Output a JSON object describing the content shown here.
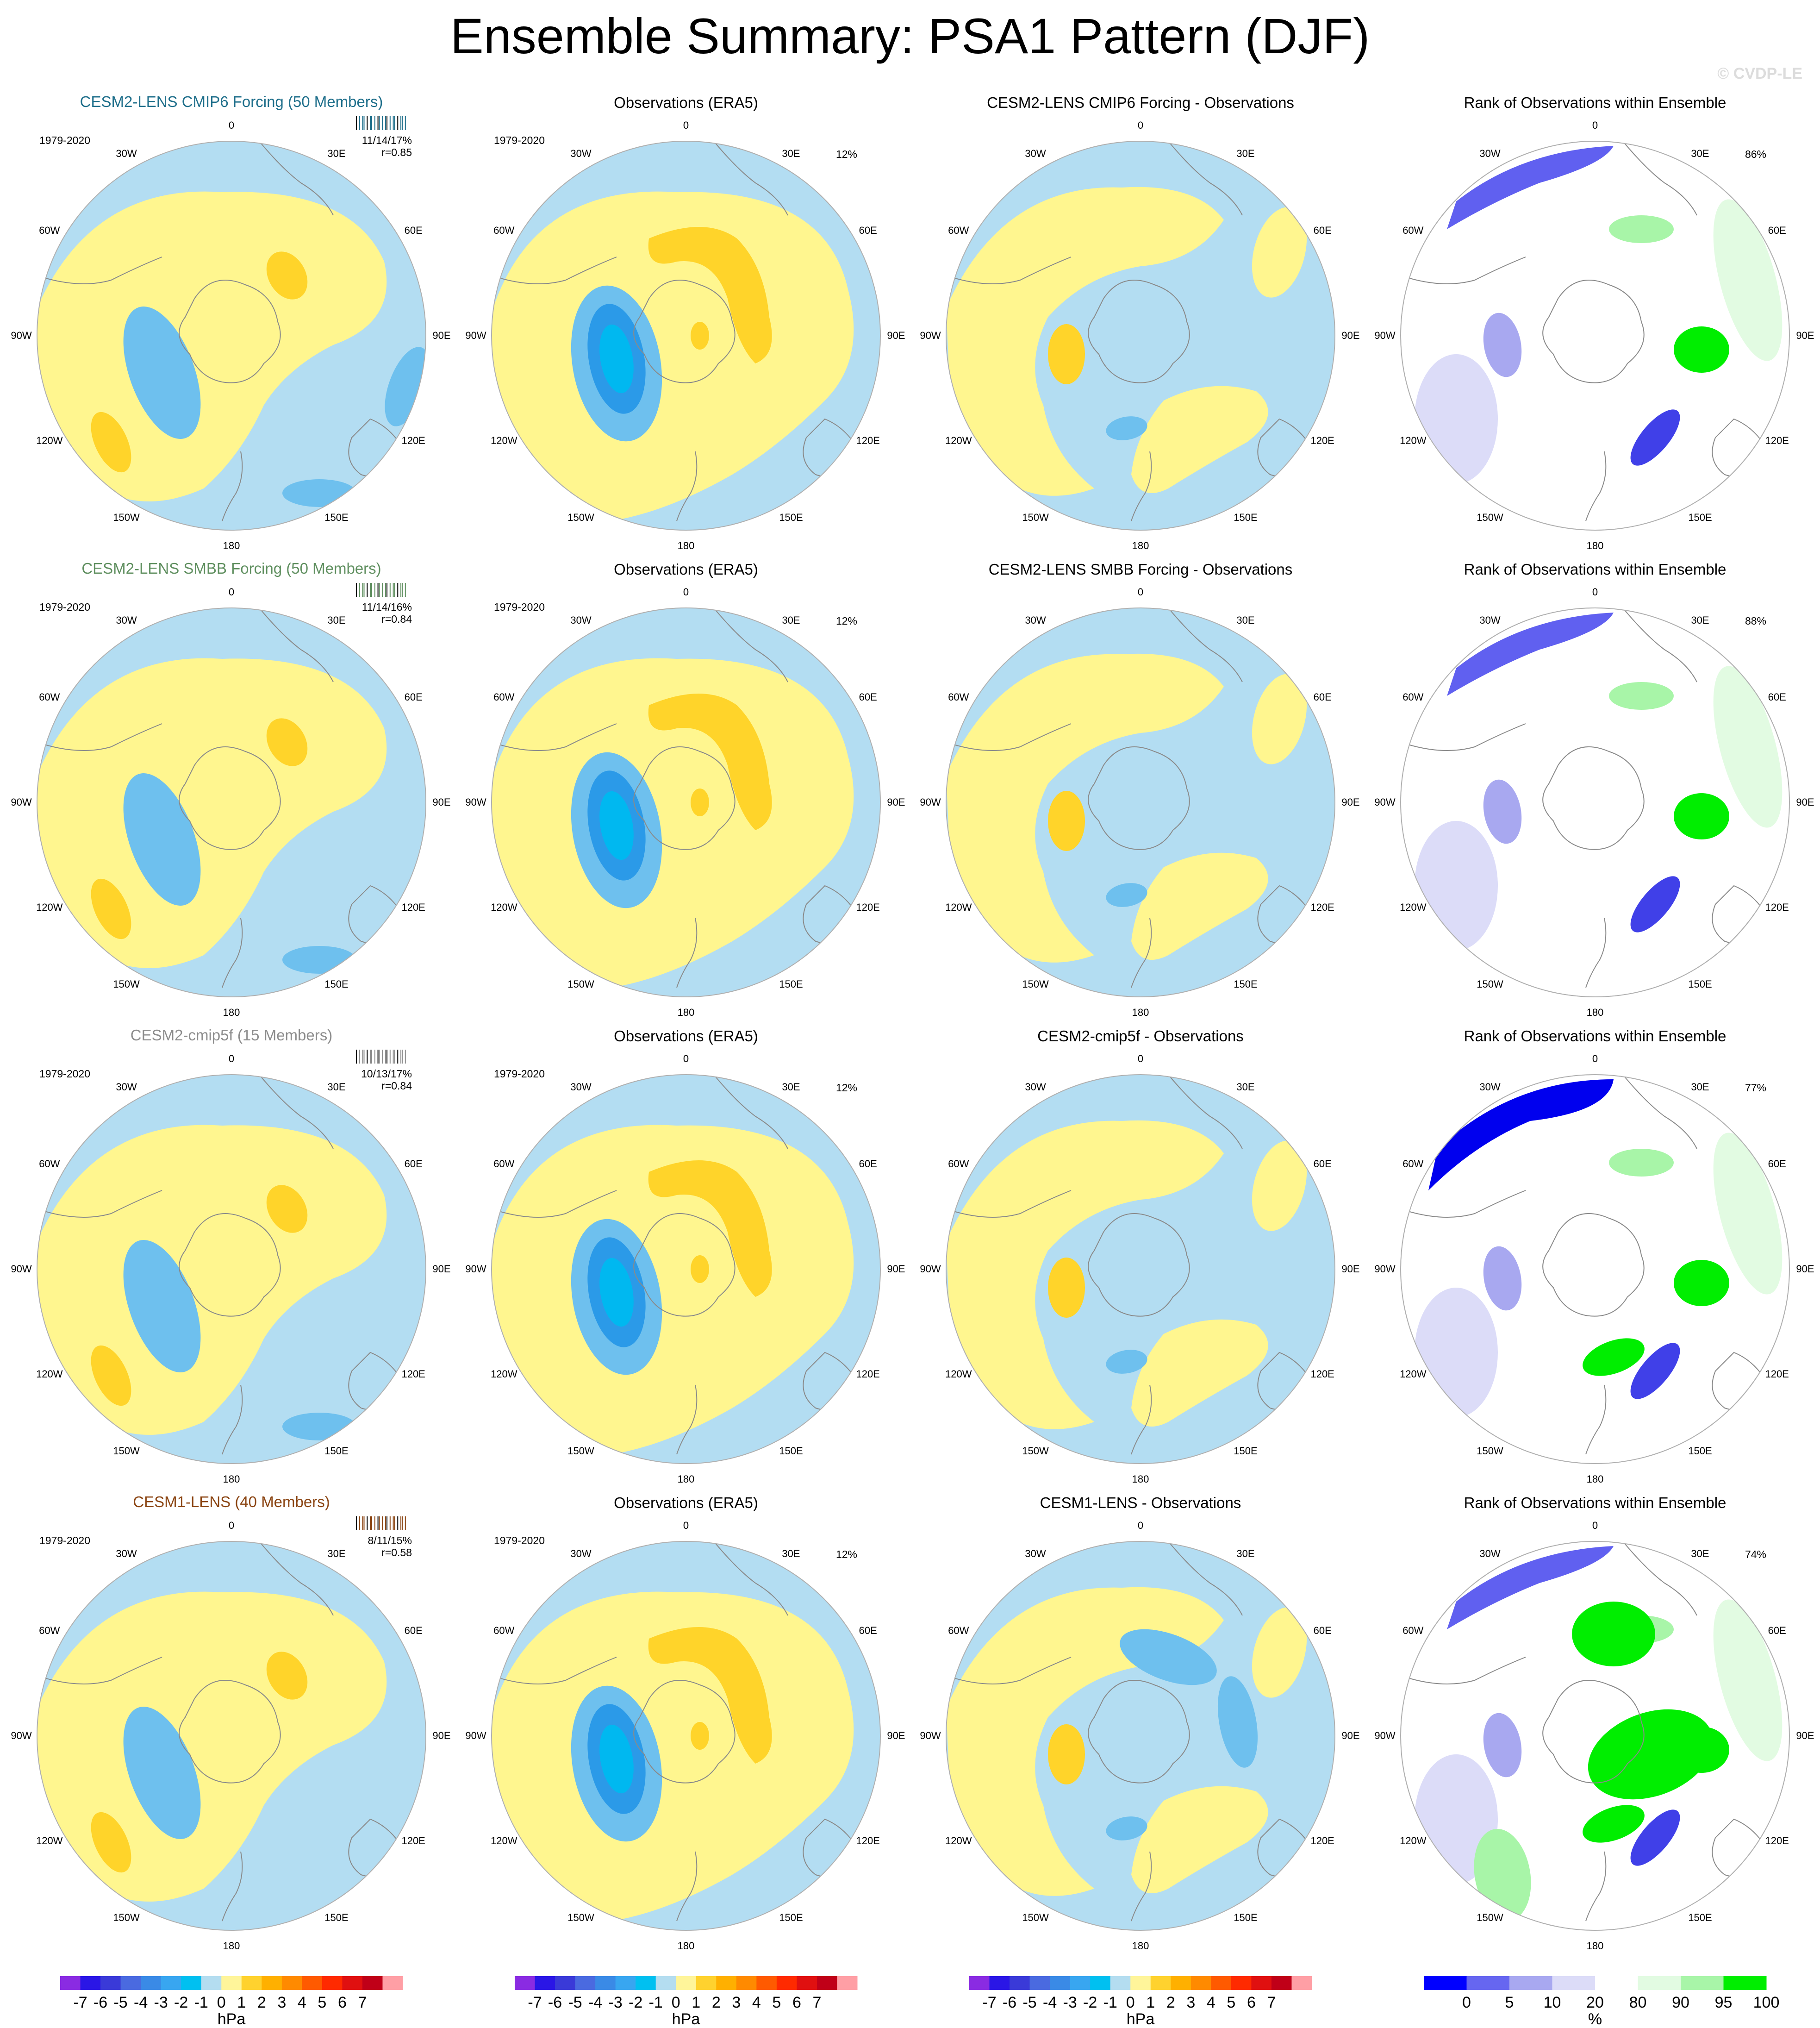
{
  "title": "Ensemble Summary: PSA1 Pattern (DJF)",
  "watermark": "© CVDP-LE",
  "period": "1979-2020",
  "lon_labels": [
    "0",
    "30E",
    "60E",
    "90E",
    "120E",
    "150E",
    "180",
    "150W",
    "120W",
    "90W",
    "60W",
    "30W"
  ],
  "rows": [
    {
      "model_title": "CESM2-LENS CMIP6 Forcing (50 Members)",
      "model_color": "#1f6f8b",
      "stat_line1": "11/14/17%",
      "stat_line2": "r=0.85",
      "obs_title": "Observations (ERA5)",
      "obs_pct": "12%",
      "diff_title": "CESM2-LENS CMIP6 Forcing - Observations",
      "rank_title": "Rank of Observations within Ensemble",
      "rank_pct": "86%"
    },
    {
      "model_title": "CESM2-LENS SMBB Forcing (50 Members)",
      "model_color": "#5f8f5f",
      "stat_line1": "11/14/16%",
      "stat_line2": "r=0.84",
      "obs_title": "Observations (ERA5)",
      "obs_pct": "12%",
      "diff_title": "CESM2-LENS SMBB Forcing - Observations",
      "rank_title": "Rank of Observations within Ensemble",
      "rank_pct": "88%"
    },
    {
      "model_title": "CESM2-cmip5f (15 Members)",
      "model_color": "#8c8c8c",
      "stat_line1": "10/13/17%",
      "stat_line2": "r=0.84",
      "obs_title": "Observations (ERA5)",
      "obs_pct": "12%",
      "diff_title": "CESM2-cmip5f - Observations",
      "rank_title": "Rank of Observations within Ensemble",
      "rank_pct": "77%"
    },
    {
      "model_title": "CESM1-LENS (40 Members)",
      "model_color": "#8b4513",
      "stat_line1": "8/11/15%",
      "stat_line2": "r=0.58",
      "obs_title": "Observations (ERA5)",
      "obs_pct": "12%",
      "diff_title": "CESM1-LENS - Observations",
      "rank_title": "Rank of Observations within Ensemble",
      "rank_pct": "74%"
    }
  ],
  "hpa_colorbar": {
    "labels": [
      "-7",
      "-6",
      "-5",
      "-4",
      "-3",
      "-2",
      "-1",
      "0",
      "1",
      "2",
      "3",
      "4",
      "5",
      "6",
      "7"
    ],
    "unit": "hPa",
    "colors": [
      "#8a2be2",
      "#2a16e6",
      "#3a3ad8",
      "#4a6ae0",
      "#3a8ae6",
      "#38a6f0",
      "#00c0f0",
      "#b4ddf0",
      "#fff59a",
      "#ffd22e",
      "#ffb000",
      "#ff8a00",
      "#ff5a00",
      "#ff2a00",
      "#e01010",
      "#c00018",
      "#ff9fa5"
    ]
  },
  "rank_colorbar": {
    "labels": [
      "0",
      "5",
      "10",
      "20",
      "80",
      "90",
      "95",
      "100"
    ],
    "unit": "%",
    "colors": [
      "#0000ff",
      "#6666f0",
      "#a8a8f0",
      "#dcdcf8",
      "#ffffff",
      "#e2fbe2",
      "#a8f5a8",
      "#00ee00"
    ]
  },
  "map_colors": {
    "positive_1": "#fff68f",
    "positive_2": "#ffd42a",
    "negative_1": "#b3ddf2",
    "negative_2": "#6ec0ee",
    "negative_3": "#00b8f0"
  }
}
